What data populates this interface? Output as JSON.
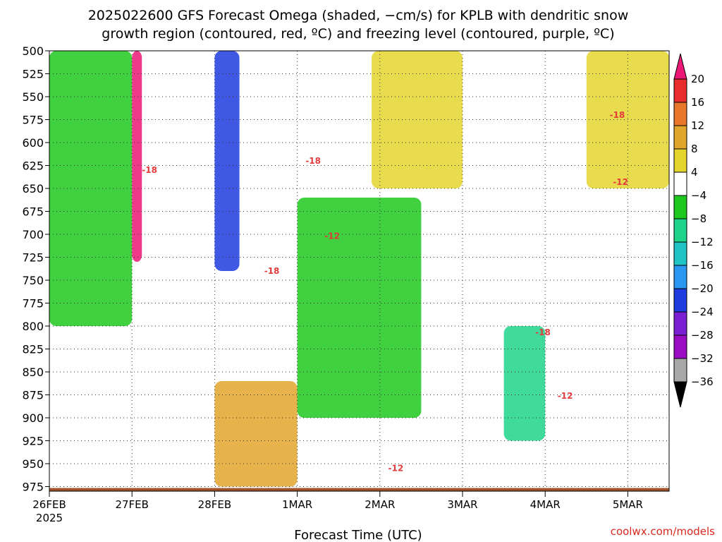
{
  "chart_data": {
    "type": "heatmap",
    "title_lines": [
      "2025022600 GFS Forecast Omega (shaded, −cm/s) for KPLB with dendritic snow",
      "growth region (contoured, red, ºC) and freezing level (contoured, purple, ºC)"
    ],
    "xlabel": "Forecast Time (UTC)",
    "ylabel": "",
    "credit": "coolwx.com/models",
    "x_ticks": [
      "26FEB",
      "27FEB",
      "28FEB",
      "1MAR",
      "2MAR",
      "3MAR",
      "4MAR",
      "5MAR"
    ],
    "x_tick_year": "2025",
    "y_ticks": [
      500,
      525,
      550,
      575,
      600,
      625,
      650,
      675,
      700,
      725,
      750,
      775,
      800,
      825,
      850,
      875,
      900,
      925,
      950,
      975
    ],
    "y_range": [
      500,
      980
    ],
    "x_range_days": [
      0,
      7.5
    ],
    "grid": true,
    "colorbar": {
      "position": "right",
      "ticks": [
        "20",
        "16",
        "12",
        "8",
        "4",
        "−4",
        "−8",
        "−12",
        "−16",
        "−20",
        "−24",
        "−28",
        "−32",
        "−36"
      ],
      "colors": [
        "#ec1877",
        "#e82d2d",
        "#e8772a",
        "#e0a52b",
        "#e4d52e",
        "#ffffff",
        "#1fc81f",
        "#1ed48b",
        "#1fc4c4",
        "#2a97f0",
        "#1f3ce0",
        "#7b1fd4",
        "#9a0bc4",
        "#a8a8a8",
        "#000000"
      ]
    },
    "contours_red_C": [
      {
        "label": "-18",
        "day": 1.12,
        "p": 630
      },
      {
        "label": "-18",
        "day": 2.6,
        "p": 740
      },
      {
        "label": "-18",
        "day": 3.1,
        "p": 620
      },
      {
        "label": "-12",
        "day": 3.33,
        "p": 702
      },
      {
        "label": "-12",
        "day": 4.1,
        "p": 955
      },
      {
        "label": "-18",
        "day": 5.88,
        "p": 807
      },
      {
        "label": "-12",
        "day": 6.15,
        "p": 876
      },
      {
        "label": "-18",
        "day": 6.78,
        "p": 570
      },
      {
        "label": "-12",
        "day": 6.82,
        "p": 643
      }
    ],
    "omega_regions": [
      {
        "day": 0.0,
        "day_end": 1.0,
        "p_top": 500,
        "p_bot": 800,
        "value": -6
      },
      {
        "day": 1.0,
        "day_end": 1.12,
        "p_top": 500,
        "p_bot": 730,
        "value": 20
      },
      {
        "day": 2.0,
        "day_end": 2.3,
        "p_top": 500,
        "p_bot": 740,
        "value": -22
      },
      {
        "day": 2.0,
        "day_end": 3.0,
        "p_top": 860,
        "p_bot": 975,
        "value": 8
      },
      {
        "day": 3.0,
        "day_end": 4.5,
        "p_top": 660,
        "p_bot": 900,
        "value": -6
      },
      {
        "day": 3.9,
        "day_end": 5.0,
        "p_top": 500,
        "p_bot": 650,
        "value": 5
      },
      {
        "day": 5.5,
        "day_end": 6.0,
        "p_top": 800,
        "p_bot": 925,
        "value": -12
      },
      {
        "day": 6.5,
        "day_end": 7.5,
        "p_top": 500,
        "p_bot": 650,
        "value": 5
      }
    ],
    "terrain_color": "#a0522d"
  }
}
